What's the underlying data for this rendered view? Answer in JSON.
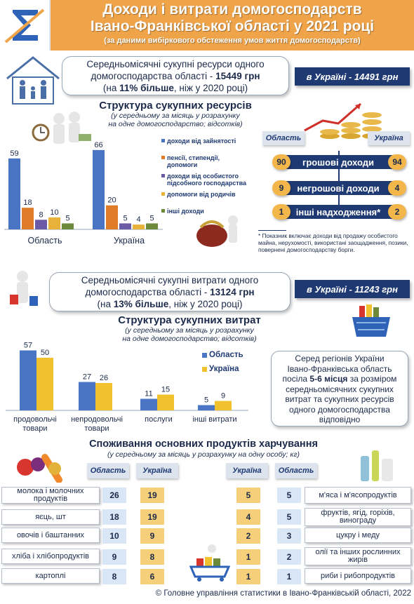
{
  "header": {
    "title_line1": "Доходи і витрати домогосподарств",
    "title_line2": "Івано-Франківської області у 2021 році",
    "subtitle": "(за даними вибіркового обстеження умов життя домогосподарств)"
  },
  "resources": {
    "line1": "Середньомісячні сукупні ресурси одного",
    "line2_pre": "домогосподарства області - ",
    "line2_value": "15449 грн",
    "line3_pre": "(на ",
    "line3_bold": "11% більше",
    "line3_post": ", ніж у 2020 році)",
    "ukraine_pre": "в Україні - ",
    "ukraine_value": "14491 грн"
  },
  "resources_structure": {
    "title": "Структура сукупних ресурсів",
    "sub1": "(у середньому за місяць у розрахунку",
    "sub2": "на одне домогосподарство; відсотків)"
  },
  "resources_legend": [
    {
      "label": "доходи від зайнятості",
      "color": "#4a75c4"
    },
    {
      "label": "пенсії, стипендії, допомоги",
      "color": "#e07b2a"
    },
    {
      "label": "доходи від особистого підсобного господарства",
      "color": "#6b5aa6"
    },
    {
      "label": "допомоги від родичів",
      "color": "#e8b23a"
    },
    {
      "label": "інші доходи",
      "color": "#6d8a3a"
    }
  ],
  "resources_groups": {
    "region": "Область",
    "ukraine": "Україна"
  },
  "resources_chart": {
    "chart_data": {
      "type": "bar",
      "categories": [
        "Область",
        "Україна"
      ],
      "series": [
        {
          "name": "доходи від зайнятості",
          "values": [
            59,
            66
          ]
        },
        {
          "name": "пенсії, стипендії, допомоги",
          "values": [
            18,
            20
          ]
        },
        {
          "name": "доходи від особистого підсобного господарства",
          "values": [
            8,
            5
          ]
        },
        {
          "name": "допомоги від родичів",
          "values": [
            10,
            4
          ]
        },
        {
          "name": "інші доходи",
          "values": [
            5,
            5
          ]
        }
      ],
      "ylim": [
        0,
        70
      ]
    }
  },
  "income_types": {
    "header_region": "Область",
    "header_ukraine": "Україна",
    "rows": [
      {
        "label": "грошові доходи",
        "region": "90",
        "ukraine": "94"
      },
      {
        "label": "негрошові доходи",
        "region": "9",
        "ukraine": "4"
      },
      {
        "label": "інші надходження*",
        "region": "1",
        "ukraine": "2"
      }
    ],
    "footnote": "* Показник включає доходи від продажу особистого майна, нерухомості, використані заощадження, позики, повернені домогосподарству борги."
  },
  "expenses": {
    "line1": "Середньомісячні сукупні витрати одного",
    "line2_pre": "домогосподарства області - ",
    "line2_value": "13124 грн",
    "line3_pre": "(на ",
    "line3_bold": "13% більше",
    "line3_post": ", ніж у 2020 році)",
    "ukraine_pre": "в Україні - ",
    "ukraine_value": "11243 грн"
  },
  "expenses_structure": {
    "title": "Структура сукупних витрат",
    "sub1": "(у середньому за місяць у розрахунку",
    "sub2": "на одне домогосподарство; відсотків)"
  },
  "expenses_legend": [
    {
      "label": "Область",
      "color": "#4a75c4"
    },
    {
      "label": "Україна",
      "color": "#f2c12e"
    }
  ],
  "expenses_chart": {
    "chart_data": {
      "type": "bar",
      "categories": [
        "продовольчі товари",
        "непродовольчі товари",
        "послуги",
        "інші витрати"
      ],
      "series": [
        {
          "name": "Область",
          "values": [
            57,
            27,
            11,
            5
          ]
        },
        {
          "name": "Україна",
          "values": [
            50,
            26,
            15,
            9
          ]
        }
      ],
      "ylim": [
        0,
        60
      ]
    }
  },
  "expense_cat_lines": [
    [
      "продовольчі",
      "товари"
    ],
    [
      "непродовольчі",
      "товари"
    ],
    [
      "послуги",
      ""
    ],
    [
      "інші витрати",
      ""
    ]
  ],
  "ranking_note": {
    "line1": "Серед регіонів України",
    "line2": "Івано-Франківська область",
    "line3_pre": "посіла ",
    "line3_bold": "5-6 місця",
    "line3_post": " за розміром",
    "line4": "середньомісячних сукупних",
    "line5": "витрат та сукупних ресурсів",
    "line6": "одного домогосподарства",
    "line7": "відповідно"
  },
  "food": {
    "title": "Споживання основних продуктів харчування",
    "sub": "(у середньому за місяць у розрахунку на одну особу; кг)",
    "hdr_region": "Область",
    "hdr_ukraine": "Україна",
    "left": [
      {
        "label": "молока  і молочних продуктів",
        "region": "26",
        "ukraine": "19"
      },
      {
        "label": "яєць, шт",
        "region": "18",
        "ukraine": "19"
      },
      {
        "label": "овочів і баштанних",
        "region": "10",
        "ukraine": "9"
      },
      {
        "label": "хліба і хлібопродуктів",
        "region": "9",
        "ukraine": "8"
      },
      {
        "label": "картоплі",
        "region": "8",
        "ukraine": "6"
      }
    ],
    "right": [
      {
        "label": "м'яса і м'ясопродуктів",
        "region": "5",
        "ukraine": "5"
      },
      {
        "label": "фруктів, ягід, горіхів, винограду",
        "region": "5",
        "ukraine": "4"
      },
      {
        "label": "цукру і меду",
        "region": "3",
        "ukraine": "2"
      },
      {
        "label": "олії та інших рослинних жирів",
        "region": "2",
        "ukraine": "1"
      },
      {
        "label": "риби і рибопродуктів",
        "region": "1",
        "ukraine": "1"
      }
    ]
  },
  "footer": "© Головне управління статистики в Івано-Франківській області, 2022",
  "colors": {
    "navy": "#1f3a73",
    "orange": "#f0a44a",
    "blue": "#4a75c4",
    "gold": "#f2c12e"
  }
}
